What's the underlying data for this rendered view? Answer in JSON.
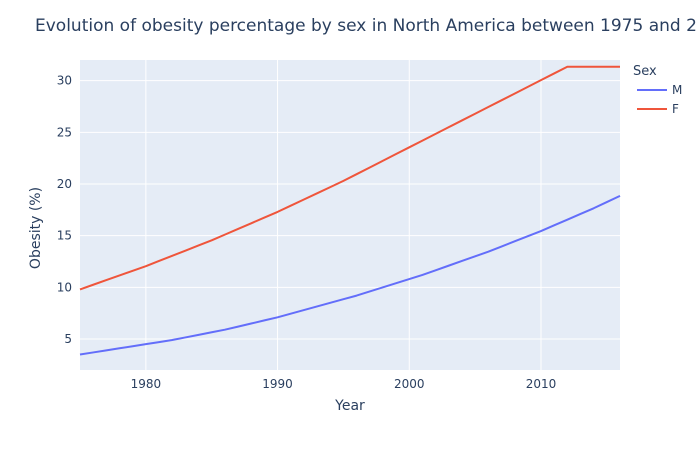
{
  "chart_data": {
    "type": "line",
    "title": "Evolution of obesity percentage by sex in North America between 1975 and 2",
    "xlabel": "Year",
    "ylabel": "Obesity (%)",
    "xlim": [
      1975,
      2016
    ],
    "ylim": [
      2,
      32
    ],
    "xticks": [
      1980,
      1990,
      2000,
      2010
    ],
    "yticks": [
      5,
      10,
      15,
      20,
      25,
      30
    ],
    "grid": true,
    "legend_title": "Sex",
    "legend_position": "top-right",
    "x": [
      1975,
      1976,
      1977,
      1978,
      1979,
      1980,
      1981,
      1982,
      1983,
      1984,
      1985,
      1986,
      1987,
      1988,
      1989,
      1990,
      1991,
      1992,
      1993,
      1994,
      1995,
      1996,
      1997,
      1998,
      1999,
      2000,
      2001,
      2002,
      2003,
      2004,
      2005,
      2006,
      2007,
      2008,
      2009,
      2010,
      2011,
      2012,
      2013,
      2014,
      2015,
      2016
    ],
    "series": [
      {
        "name": "M",
        "color": "#636efa",
        "values": [
          3.5,
          3.7,
          3.9,
          4.1,
          4.3,
          4.5,
          4.7,
          4.9,
          5.15,
          5.4,
          5.65,
          5.9,
          6.2,
          6.5,
          6.8,
          7.1,
          7.45,
          7.8,
          8.15,
          8.5,
          8.85,
          9.2,
          9.6,
          10.0,
          10.4,
          10.8,
          11.2,
          11.65,
          12.1,
          12.55,
          13.0,
          13.45,
          13.95,
          14.45,
          14.95,
          15.45,
          16.0,
          16.55,
          17.1,
          17.65,
          18.25,
          18.85
        ]
      },
      {
        "name": "F",
        "color": "#ef553b",
        "values": [
          9.8,
          10.25,
          10.7,
          11.15,
          11.6,
          12.05,
          12.55,
          13.05,
          13.55,
          14.05,
          14.55,
          15.1,
          15.65,
          16.2,
          16.75,
          17.3,
          17.9,
          18.5,
          19.1,
          19.7,
          20.3,
          20.95,
          21.6,
          22.25,
          22.9,
          23.55,
          24.2,
          24.85,
          25.5,
          26.15,
          26.8,
          27.45,
          28.1,
          28.75,
          29.4,
          30.05,
          30.7,
          31.35,
          31.35,
          31.35,
          31.35,
          31.35
        ]
      }
    ]
  }
}
